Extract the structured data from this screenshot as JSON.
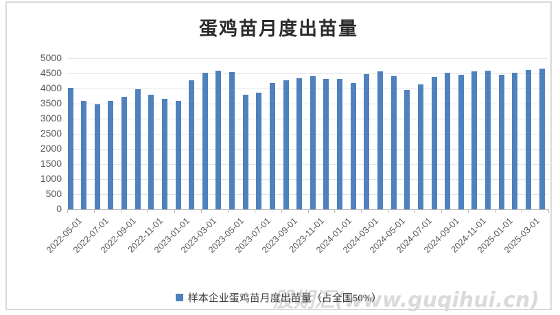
{
  "title": "蛋鸡苗月度出苗量",
  "legend": {
    "label": "样本企业蛋鸡苗月度出苗量（占全国50%）"
  },
  "watermark": "股期汇(www.guqihui.cn)",
  "colors": {
    "bar": "#4f81bd",
    "gridline": "#e3e3e3",
    "axis_line": "#b7b7b7",
    "tick_label": "#595959",
    "title_text": "#2b2b2b",
    "legend_text": "#3f3f3f",
    "watermark_text": "#dadada",
    "frame_border": "#d9d9d9"
  },
  "chart_data": {
    "type": "bar",
    "title": "蛋鸡苗月度出苗量",
    "x": [
      "2022-05-01",
      "2022-06-01",
      "2022-07-01",
      "2022-08-01",
      "2022-09-01",
      "2022-10-01",
      "2022-11-01",
      "2022-12-01",
      "2023-01-01",
      "2023-02-01",
      "2023-03-01",
      "2023-04-01",
      "2023-05-01",
      "2023-06-01",
      "2023-07-01",
      "2023-08-01",
      "2023-09-01",
      "2023-10-01",
      "2023-11-01",
      "2023-12-01",
      "2024-01-01",
      "2024-02-01",
      "2024-03-01",
      "2024-04-01",
      "2024-05-01",
      "2024-06-01",
      "2024-07-01",
      "2024-08-01",
      "2024-09-01",
      "2024-10-01",
      "2024-11-01",
      "2024-12-01",
      "2025-01-01",
      "2025-02-01",
      "2025-03-01",
      "2025-04-01"
    ],
    "values": [
      4020,
      3590,
      3470,
      3590,
      3720,
      3970,
      3800,
      3670,
      3590,
      4270,
      4520,
      4590,
      4540,
      3790,
      3860,
      4180,
      4270,
      4350,
      4420,
      4310,
      4320,
      4180,
      4480,
      4560,
      4420,
      3960,
      4140,
      4380,
      4520,
      4460,
      4560,
      4590,
      4460,
      4530,
      4610,
      4670
    ],
    "x_tick_labels": [
      "2022-05-01",
      "2022-07-01",
      "2022-09-01",
      "2022-11-01",
      "2023-01-01",
      "2023-03-01",
      "2023-05-01",
      "2023-07-01",
      "2023-09-01",
      "2023-11-01",
      "2024-01-01",
      "2024-03-01",
      "2024-05-01",
      "2024-07-01",
      "2024-09-01",
      "2024-11-01",
      "2025-01-01",
      "2025-03-01"
    ],
    "y_ticks": [
      0,
      500,
      1000,
      1500,
      2000,
      2500,
      3000,
      3500,
      4000,
      4500,
      5000
    ],
    "ylim": [
      0,
      5000
    ],
    "grid": true,
    "legend": [
      "样本企业蛋鸡苗月度出苗量（占全国50%）"
    ],
    "legend_position": "bottom"
  }
}
